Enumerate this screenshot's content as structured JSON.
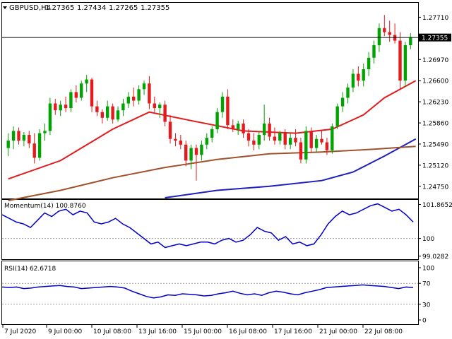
{
  "header": {
    "symbol": "GBPUSD,H4",
    "open": "1.27365",
    "high": "1.27434",
    "low": "1.27265",
    "close": "1.27355"
  },
  "chart_data": [
    {
      "type": "candlestick",
      "panel": "price",
      "ylim": [
        1.2455,
        1.2795
      ],
      "y_ticks": [
        "1.27710",
        "1.26970",
        "1.26600",
        "1.26230",
        "1.25860",
        "1.25490",
        "1.25120",
        "1.24750"
      ],
      "current_price_label": "1.27355",
      "current_price": 1.27355,
      "candles": [
        [
          1.2542,
          1.2568,
          1.2528,
          1.2555
        ],
        [
          1.2555,
          1.258,
          1.254,
          1.2572
        ],
        [
          1.2572,
          1.2578,
          1.2548,
          1.2555
        ],
        [
          1.2555,
          1.257,
          1.2545,
          1.2565
        ],
        [
          1.2565,
          1.2572,
          1.2542,
          1.255
        ],
        [
          1.255,
          1.2568,
          1.2515,
          1.2525
        ],
        [
          1.2525,
          1.2575,
          1.252,
          1.2568
        ],
        [
          1.2568,
          1.2585,
          1.2555,
          1.2572
        ],
        [
          1.2572,
          1.263,
          1.2565,
          1.262
        ],
        [
          1.262,
          1.2628,
          1.26,
          1.2608
        ],
        [
          1.2608,
          1.2625,
          1.2598,
          1.2618
        ],
        [
          1.2618,
          1.2632,
          1.2605,
          1.2612
        ],
        [
          1.2612,
          1.2645,
          1.2605,
          1.264
        ],
        [
          1.264,
          1.2652,
          1.2622,
          1.263
        ],
        [
          1.263,
          1.266,
          1.2625,
          1.2655
        ],
        [
          1.2655,
          1.267,
          1.264,
          1.2662
        ],
        [
          1.2662,
          1.2665,
          1.2605,
          1.2615
        ],
        [
          1.2615,
          1.2625,
          1.2598,
          1.2605
        ],
        [
          1.2605,
          1.261,
          1.2585,
          1.2595
        ],
        [
          1.2595,
          1.2625,
          1.259,
          1.2615
        ],
        [
          1.2615,
          1.262,
          1.2585,
          1.2592
        ],
        [
          1.2592,
          1.2615,
          1.2588,
          1.2608
        ],
        [
          1.2608,
          1.2628,
          1.2598,
          1.262
        ],
        [
          1.262,
          1.264,
          1.2612,
          1.2632
        ],
        [
          1.2632,
          1.2648,
          1.2615,
          1.2625
        ],
        [
          1.2625,
          1.2652,
          1.2618,
          1.2645
        ],
        [
          1.2645,
          1.266,
          1.2635,
          1.2655
        ],
        [
          1.2655,
          1.2668,
          1.261,
          1.262
        ],
        [
          1.262,
          1.2632,
          1.2605,
          1.2612
        ],
        [
          1.2612,
          1.2622,
          1.2595,
          1.2618
        ],
        [
          1.2618,
          1.2625,
          1.258,
          1.2588
        ],
        [
          1.2588,
          1.26,
          1.255,
          1.2558
        ],
        [
          1.2558,
          1.2568,
          1.2545,
          1.2555
        ],
        [
          1.2555,
          1.2565,
          1.254,
          1.2548
        ],
        [
          1.2548,
          1.2555,
          1.251,
          1.252
        ],
        [
          1.252,
          1.2548,
          1.2505,
          1.2542
        ],
        [
          1.2542,
          1.2548,
          1.2485,
          1.253
        ],
        [
          1.253,
          1.2555,
          1.252,
          1.2548
        ],
        [
          1.2548,
          1.2568,
          1.254,
          1.256
        ],
        [
          1.256,
          1.258,
          1.2552,
          1.2575
        ],
        [
          1.2575,
          1.2612,
          1.2568,
          1.2605
        ],
        [
          1.2605,
          1.264,
          1.2595,
          1.2632
        ],
        [
          1.2632,
          1.2645,
          1.2575,
          1.2582
        ],
        [
          1.2582,
          1.2592,
          1.257,
          1.2575
        ],
        [
          1.2575,
          1.259,
          1.2565,
          1.2585
        ],
        [
          1.2585,
          1.2592,
          1.256,
          1.2568
        ],
        [
          1.2568,
          1.2575,
          1.2545,
          1.2555
        ],
        [
          1.2555,
          1.2568,
          1.2538,
          1.2548
        ],
        [
          1.2548,
          1.2572,
          1.254,
          1.2565
        ],
        [
          1.2565,
          1.2618,
          1.2555,
          1.2585
        ],
        [
          1.2585,
          1.2595,
          1.2555,
          1.2562
        ],
        [
          1.2562,
          1.2578,
          1.2548,
          1.2555
        ],
        [
          1.2555,
          1.2572,
          1.2548,
          1.2568
        ],
        [
          1.2568,
          1.2575,
          1.254,
          1.2548
        ],
        [
          1.2548,
          1.2568,
          1.254,
          1.256
        ],
        [
          1.256,
          1.2575,
          1.2545,
          1.2552
        ],
        [
          1.2552,
          1.256,
          1.2515,
          1.2522
        ],
        [
          1.2522,
          1.258,
          1.2515,
          1.2572
        ],
        [
          1.2572,
          1.2578,
          1.2535,
          1.2542
        ],
        [
          1.2542,
          1.2565,
          1.2535,
          1.2558
        ],
        [
          1.2558,
          1.2572,
          1.2548,
          1.2552
        ],
        [
          1.2552,
          1.256,
          1.253,
          1.2538
        ],
        [
          1.2538,
          1.2585,
          1.2532,
          1.258
        ],
        [
          1.258,
          1.262,
          1.2575,
          1.2615
        ],
        [
          1.2615,
          1.264,
          1.2605,
          1.263
        ],
        [
          1.263,
          1.2655,
          1.262,
          1.2648
        ],
        [
          1.2648,
          1.268,
          1.264,
          1.2672
        ],
        [
          1.2672,
          1.2685,
          1.265,
          1.266
        ],
        [
          1.266,
          1.269,
          1.265,
          1.268
        ],
        [
          1.268,
          1.271,
          1.2668,
          1.27
        ],
        [
          1.27,
          1.273,
          1.269,
          1.2722
        ],
        [
          1.2722,
          1.276,
          1.271,
          1.2752
        ],
        [
          1.2752,
          1.2775,
          1.2738,
          1.2745
        ],
        [
          1.2745,
          1.2765,
          1.2728,
          1.274
        ],
        [
          1.274,
          1.276,
          1.2725,
          1.273
        ],
        [
          1.273,
          1.2745,
          1.2645,
          1.266
        ],
        [
          1.266,
          1.2728,
          1.265,
          1.2722
        ],
        [
          1.2722,
          1.2743,
          1.2715,
          1.2736
        ]
      ],
      "moving_averages": [
        {
          "color": "#e41a1c",
          "points": [
            [
              0,
              1.2488
            ],
            [
              10,
              1.252
            ],
            [
              20,
              1.2575
            ],
            [
              27,
              1.2605
            ],
            [
              35,
              1.259
            ],
            [
              45,
              1.2572
            ],
            [
              55,
              1.2568
            ],
            [
              62,
              1.2575
            ],
            [
              68,
              1.26
            ],
            [
              72,
              1.263
            ],
            [
              78,
              1.266
            ]
          ]
        },
        {
          "color": "#1f1fbf",
          "points": [
            [
              30,
              1.2455
            ],
            [
              40,
              1.2468
            ],
            [
              50,
              1.2475
            ],
            [
              60,
              1.2485
            ],
            [
              66,
              1.25
            ],
            [
              72,
              1.2528
            ],
            [
              78,
              1.2558
            ]
          ]
        },
        {
          "color": "#a0522d",
          "points": [
            [
              0,
              1.245
            ],
            [
              10,
              1.2468
            ],
            [
              20,
              1.249
            ],
            [
              30,
              1.2508
            ],
            [
              40,
              1.2522
            ],
            [
              50,
              1.2532
            ],
            [
              60,
              1.2535
            ],
            [
              70,
              1.254
            ],
            [
              78,
              1.2545
            ]
          ]
        }
      ]
    },
    {
      "type": "line",
      "panel": "momentum",
      "label": "Momentum(14) 100.8760",
      "ylim": [
        98.9,
        102.0
      ],
      "y_ticks": [
        "101.8652",
        "100",
        "99.0282"
      ],
      "values": [
        101.3,
        101.1,
        100.9,
        100.8,
        100.6,
        101.0,
        101.4,
        101.2,
        101.5,
        101.6,
        101.3,
        101.5,
        101.4,
        100.9,
        100.8,
        100.9,
        101.1,
        100.8,
        100.6,
        100.3,
        100.0,
        99.7,
        99.8,
        99.5,
        99.6,
        99.7,
        99.6,
        99.7,
        99.8,
        99.8,
        99.7,
        99.9,
        100.0,
        99.8,
        99.9,
        100.2,
        100.6,
        100.4,
        100.3,
        99.9,
        100.1,
        99.7,
        99.8,
        99.6,
        99.7,
        100.2,
        100.8,
        101.2,
        101.5,
        101.3,
        101.4,
        101.6,
        101.8,
        101.9,
        101.7,
        101.5,
        101.6,
        101.3,
        100.9
      ]
    },
    {
      "type": "line",
      "panel": "rsi",
      "label": "RSI(14) 62.6718",
      "ylim": [
        0,
        100
      ],
      "y_ticks": [
        "100",
        "70",
        "30",
        "0"
      ],
      "values": [
        63,
        62,
        63,
        60,
        61,
        63,
        64,
        65,
        66,
        64,
        63,
        60,
        61,
        62,
        63,
        64,
        63,
        61,
        55,
        50,
        45,
        42,
        44,
        48,
        47,
        50,
        49,
        48,
        46,
        47,
        50,
        52,
        55,
        51,
        48,
        50,
        47,
        52,
        55,
        53,
        50,
        48,
        52,
        55,
        58,
        62,
        63,
        64,
        65,
        66,
        67,
        66,
        65,
        64,
        62,
        60,
        63,
        62
      ]
    }
  ],
  "x_axis": {
    "labels": [
      "7 Jul 2020",
      "9 Jul 00:00",
      "10 Jul 08:00",
      "13 Jul 16:00",
      "15 Jul 00:00",
      "16 Jul 08:00",
      "17 Jul 16:00",
      "21 Jul 00:00",
      "22 Jul 08:00"
    ]
  }
}
